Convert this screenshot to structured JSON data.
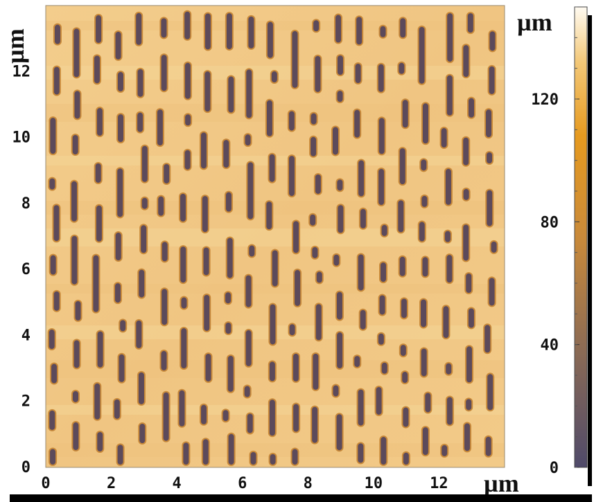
{
  "image": {
    "x_axis": {
      "unit": "µm",
      "ticks": [
        "0",
        "2",
        "4",
        "6",
        "8",
        "10",
        "12"
      ],
      "range": [
        0,
        14
      ]
    },
    "y_axis": {
      "unit": "µm",
      "ticks": [
        "0",
        "2",
        "4",
        "6",
        "8",
        "10",
        "12"
      ],
      "range": [
        0,
        14
      ]
    },
    "colorbar": {
      "unit": "µm",
      "ticks": [
        "0",
        "40",
        "80",
        "120"
      ],
      "range": [
        0,
        150
      ]
    },
    "colors": {
      "surface": "#f0c582",
      "surface_light": "#f5d79a",
      "pit": "#5c4a5b",
      "pit_rim": "#c98a3a",
      "cbar_top": "#fffbf2",
      "cbar_mid": "#e69a1f",
      "cbar_bottom": "#4f4a6a"
    }
  }
}
